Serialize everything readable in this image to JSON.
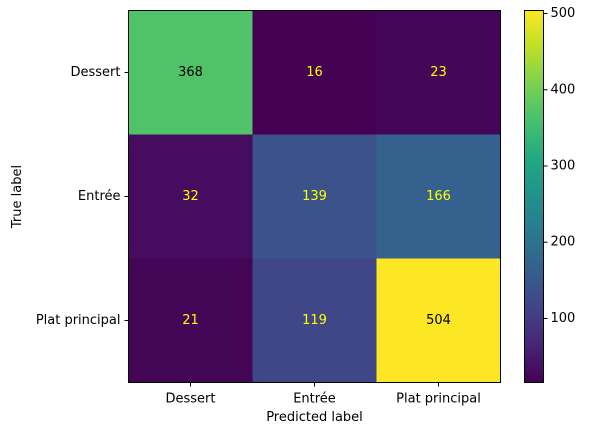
{
  "chart_data": {
    "type": "heatmap",
    "title": "",
    "xlabel": "Predicted label",
    "ylabel": "True label",
    "x_categories": [
      "Dessert",
      "Entrée",
      "Plat principal"
    ],
    "y_categories": [
      "Dessert",
      "Entrée",
      "Plat principal"
    ],
    "values": [
      [
        368,
        16,
        23
      ],
      [
        32,
        139,
        166
      ],
      [
        21,
        119,
        504
      ]
    ],
    "colormap": "viridis",
    "color_range": [
      16,
      504
    ],
    "colorbar_ticks": [
      100,
      200,
      300,
      400,
      500
    ],
    "colorbar_tick_labels": [
      "100",
      "200",
      "300",
      "400",
      "500"
    ],
    "cell_text_colors": {
      "light": "#ffff00",
      "dark": "#000000"
    }
  }
}
